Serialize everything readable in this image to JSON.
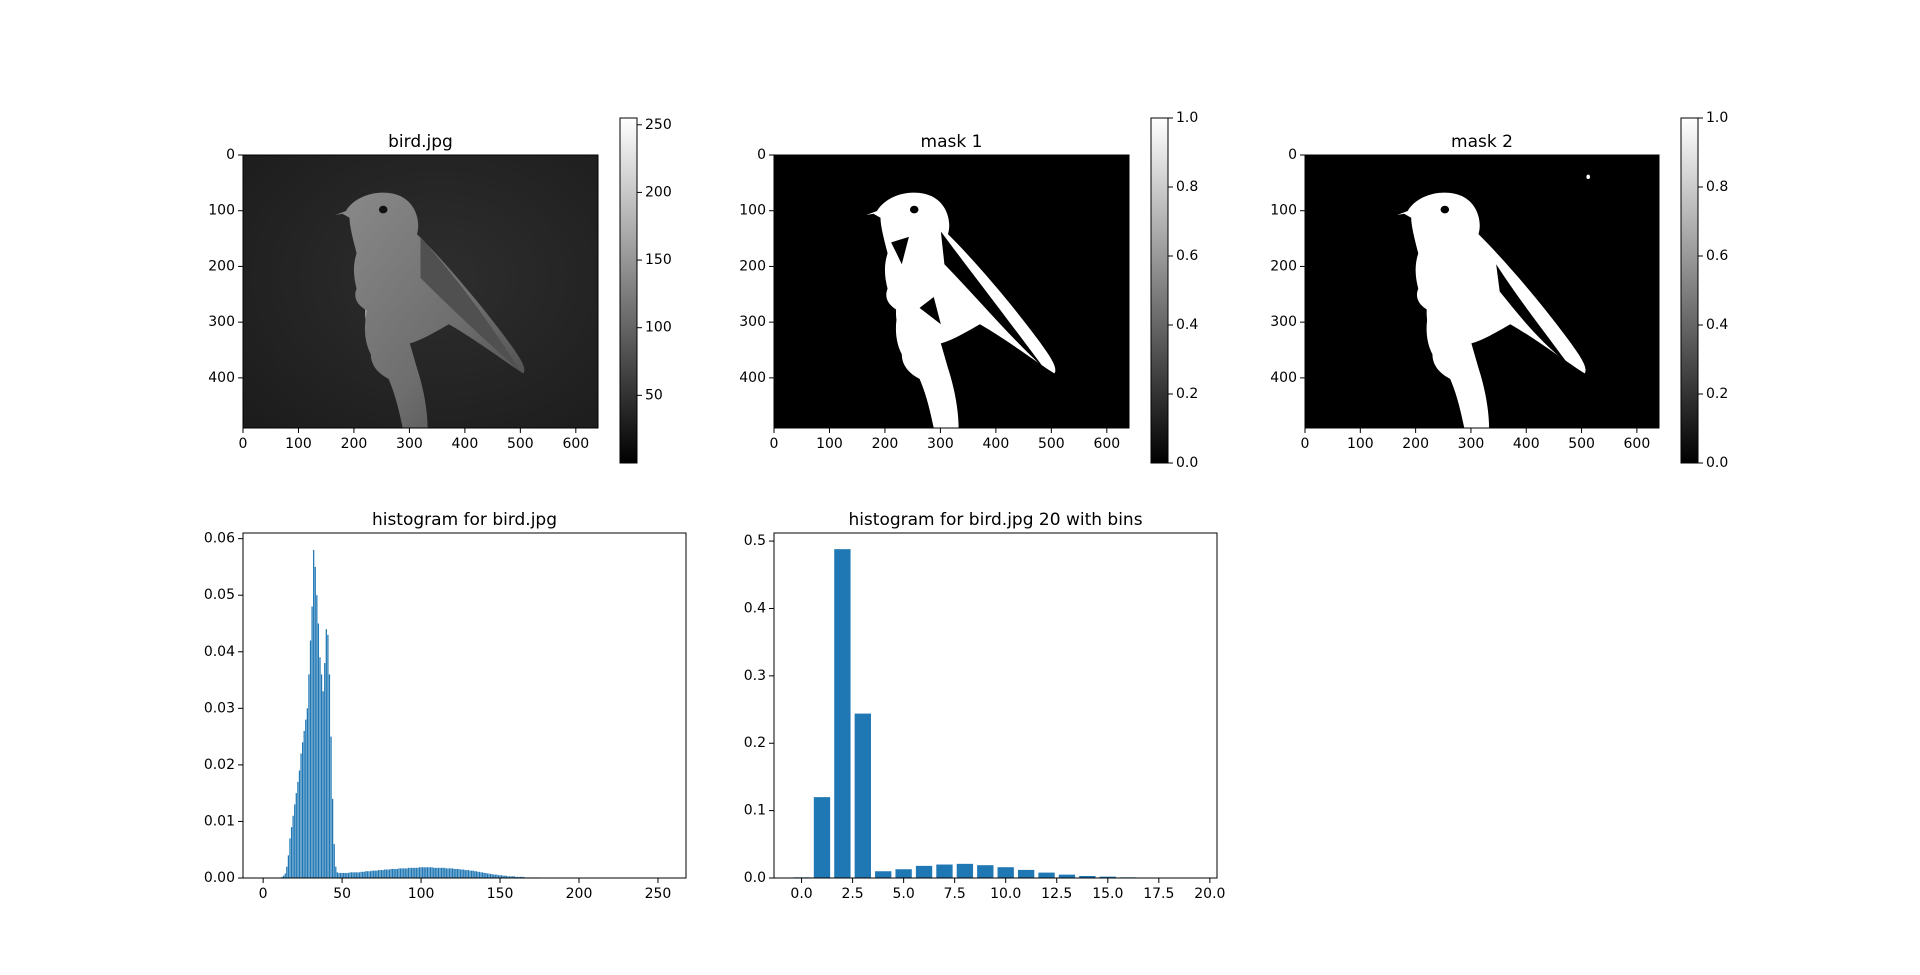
{
  "chart_data": [
    {
      "type": "image",
      "title": "bird.jpg",
      "colormap": "gray",
      "xlim": [
        0,
        640
      ],
      "ylim": [
        490,
        0
      ],
      "xticks": [
        0,
        100,
        200,
        300,
        400,
        500,
        600
      ],
      "yticks": [
        0,
        100,
        200,
        300,
        400
      ],
      "colorbar": {
        "range": [
          0,
          255
        ],
        "ticks": [
          50,
          100,
          150,
          200,
          250
        ]
      }
    },
    {
      "type": "image",
      "title": "mask 1",
      "colormap": "gray",
      "xlim": [
        0,
        640
      ],
      "ylim": [
        490,
        0
      ],
      "xticks": [
        0,
        100,
        200,
        300,
        400,
        500,
        600
      ],
      "yticks": [
        0,
        100,
        200,
        300,
        400
      ],
      "colorbar": {
        "range": [
          0,
          1
        ],
        "ticks": [
          "0.0",
          "0.2",
          "0.4",
          "0.6",
          "0.8",
          "1.0"
        ]
      }
    },
    {
      "type": "image",
      "title": "mask 2",
      "colormap": "gray",
      "xlim": [
        0,
        640
      ],
      "ylim": [
        490,
        0
      ],
      "xticks": [
        0,
        100,
        200,
        300,
        400,
        500,
        600
      ],
      "yticks": [
        0,
        100,
        200,
        300,
        400
      ],
      "colorbar": {
        "range": [
          0,
          1
        ],
        "ticks": [
          "0.0",
          "0.2",
          "0.4",
          "0.6",
          "0.8",
          "1.0"
        ]
      }
    },
    {
      "type": "bar",
      "title": "histogram for bird.jpg",
      "color": "#1f77b4",
      "xlim": [
        -12.75,
        267.75
      ],
      "ylim": [
        0,
        0.061
      ],
      "xticks": [
        0,
        50,
        100,
        150,
        200,
        250
      ],
      "yticks": [
        "0.00",
        "0.01",
        "0.02",
        "0.03",
        "0.04",
        "0.05",
        "0.06"
      ],
      "x_start": 0,
      "values": [
        0,
        0,
        0,
        0,
        0,
        0,
        0,
        0,
        0,
        0,
        0,
        0,
        0.0002,
        0.0004,
        0.0008,
        0.002,
        0.004,
        0.007,
        0.009,
        0.011,
        0.013,
        0.015,
        0.017,
        0.019,
        0.022,
        0.024,
        0.026,
        0.028,
        0.03,
        0.036,
        0.042,
        0.048,
        0.058,
        0.055,
        0.05,
        0.045,
        0.039,
        0.036,
        0.033,
        0.038,
        0.044,
        0.043,
        0.036,
        0.025,
        0.014,
        0.006,
        0.002,
        0.001,
        0.0009,
        0.0009,
        0.0009,
        0.0009,
        0.0009,
        0.0009,
        0.0009,
        0.001,
        0.001,
        0.001,
        0.001,
        0.001,
        0.001,
        0.001,
        0.0011,
        0.0011,
        0.0011,
        0.0012,
        0.0012,
        0.0012,
        0.0012,
        0.0013,
        0.0013,
        0.0013,
        0.0013,
        0.0014,
        0.0014,
        0.0014,
        0.0014,
        0.0015,
        0.0015,
        0.0015,
        0.0015,
        0.0016,
        0.0016,
        0.0016,
        0.0016,
        0.0016,
        0.0017,
        0.0017,
        0.0017,
        0.0017,
        0.0017,
        0.0017,
        0.0018,
        0.0018,
        0.0018,
        0.0018,
        0.0018,
        0.0018,
        0.0018,
        0.0019,
        0.0019,
        0.0019,
        0.0019,
        0.0019,
        0.0019,
        0.0019,
        0.0019,
        0.0019,
        0.0018,
        0.0018,
        0.0018,
        0.0018,
        0.0018,
        0.0018,
        0.0018,
        0.0018,
        0.0017,
        0.0017,
        0.0017,
        0.0017,
        0.0017,
        0.0016,
        0.0016,
        0.0016,
        0.0016,
        0.0015,
        0.0015,
        0.0015,
        0.0014,
        0.0014,
        0.0014,
        0.0013,
        0.0013,
        0.0013,
        0.0012,
        0.0012,
        0.0011,
        0.0011,
        0.001,
        0.001,
        0.0009,
        0.0009,
        0.0008,
        0.0008,
        0.0007,
        0.0007,
        0.0006,
        0.0006,
        0.0006,
        0.0005,
        0.0005,
        0.0005,
        0.0004,
        0.0004,
        0.0004,
        0.0003,
        0.0003,
        0.0003,
        0.0003,
        0.0003,
        0.0002,
        0.0002,
        0.0002,
        0.0002,
        0.0002,
        0.0002,
        0.0001,
        0.0001,
        0.0001,
        0.0001,
        0.0001,
        0.0001,
        0.0001,
        0.0001,
        0.0001,
        5e-05,
        5e-05,
        5e-05,
        5e-05,
        5e-05,
        5e-05,
        5e-05,
        5e-05,
        5e-05,
        5e-05,
        3e-05,
        3e-05,
        3e-05,
        3e-05,
        3e-05,
        3e-05,
        3e-05,
        2e-05,
        2e-05,
        2e-05,
        2e-05,
        1e-05,
        1e-05,
        1e-05,
        1e-05,
        1e-05,
        1e-05,
        1e-05,
        0,
        0,
        0,
        0,
        0,
        0,
        0,
        0,
        0,
        0,
        0,
        0,
        0,
        0,
        0,
        0,
        0,
        0,
        0,
        0,
        0,
        0,
        0,
        0,
        0,
        0,
        0,
        0,
        0,
        0,
        0,
        0,
        0,
        0,
        0,
        0,
        0,
        0,
        0,
        0,
        0,
        0,
        0,
        0,
        0,
        0,
        0,
        0,
        0,
        0,
        0,
        0,
        0,
        0,
        0,
        0,
        0,
        0,
        0,
        0,
        0,
        0,
        0,
        0,
        0,
        0
      ]
    },
    {
      "type": "bar",
      "title": "histogram for bird.jpg 20 with bins",
      "color": "#1f77b4",
      "xlim": [
        -1.35,
        20.35
      ],
      "ylim": [
        0,
        0.512
      ],
      "xticks": [
        "0.0",
        "2.5",
        "5.0",
        "7.5",
        "10.0",
        "12.5",
        "15.0",
        "17.5",
        "20.0"
      ],
      "yticks": [
        "0.0",
        "0.1",
        "0.2",
        "0.3",
        "0.4",
        "0.5"
      ],
      "categories": [
        0,
        1,
        2,
        3,
        4,
        5,
        6,
        7,
        8,
        9,
        10,
        11,
        12,
        13,
        14,
        15,
        16,
        17,
        18,
        19
      ],
      "values": [
        0.001,
        0.12,
        0.488,
        0.244,
        0.01,
        0.013,
        0.018,
        0.02,
        0.021,
        0.019,
        0.016,
        0.012,
        0.008,
        0.005,
        0.003,
        0.002,
        0.001,
        0.0005,
        0.0003,
        0.0001
      ]
    }
  ]
}
